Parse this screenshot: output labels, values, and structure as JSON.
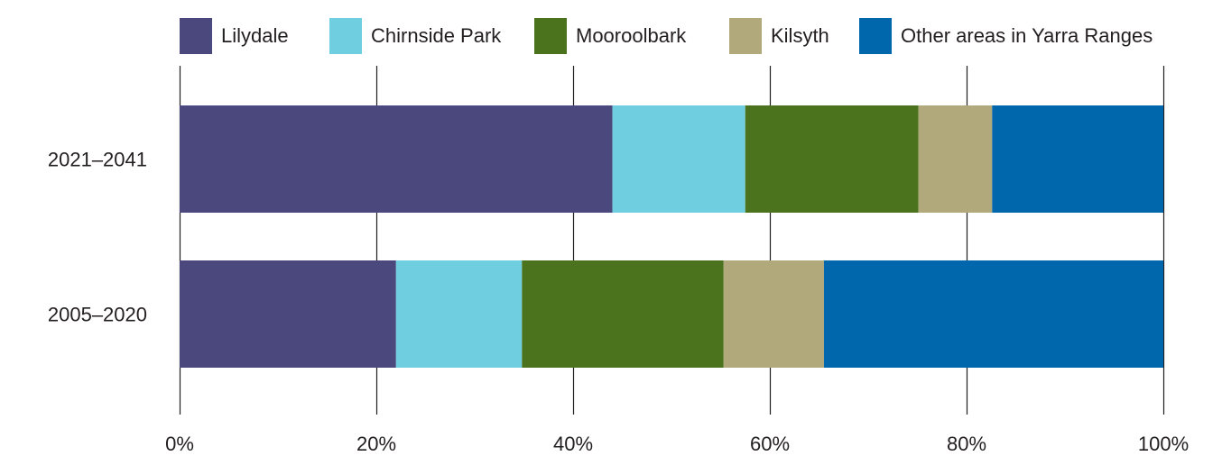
{
  "chart_data": {
    "type": "bar",
    "orientation": "horizontal",
    "stacked": true,
    "categories": [
      "2021–2041",
      "2005–2020"
    ],
    "series": [
      {
        "name": "Lilydale",
        "color": "#4a487d",
        "values": [
          44,
          22
        ]
      },
      {
        "name": "Chirnside Park",
        "color": "#6fcfe0",
        "values": [
          13.5,
          12.8
        ]
      },
      {
        "name": "Mooroolbark",
        "color": "#4b731e",
        "values": [
          17.6,
          20.5
        ]
      },
      {
        "name": "Kilsyth",
        "color": "#b1a97b",
        "values": [
          7.5,
          10.2
        ]
      },
      {
        "name": "Other areas in Yarra Ranges",
        "color": "#0067ac",
        "values": [
          17.4,
          34.5
        ]
      }
    ],
    "xlim": [
      0,
      100
    ],
    "xticks": [
      "0%",
      "20%",
      "40%",
      "60%",
      "80%",
      "100%"
    ],
    "grid": true,
    "legend_position": "top"
  }
}
